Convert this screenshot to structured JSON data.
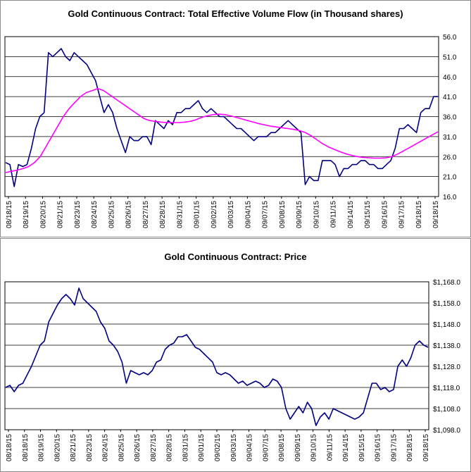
{
  "charts": [
    {
      "id": "volume",
      "title": "Gold Continuous Contract: Total Effective Volume Flow (in Thousand shares)",
      "type": "line",
      "ylim": [
        16.0,
        56.0
      ],
      "yticks": [
        "16.0",
        "21.0",
        "26.0",
        "31.0",
        "36.0",
        "41.0",
        "46.0",
        "51.0",
        "56.0"
      ],
      "ytick_values": [
        16,
        21,
        26,
        31,
        36,
        41,
        46,
        51,
        56
      ],
      "xticks": [
        "08/18/15",
        "08/19/15",
        "08/20/15",
        "08/21/15",
        "08/23/15",
        "08/24/15",
        "08/25/15",
        "08/26/15",
        "08/27/15",
        "08/28/15",
        "08/31/15",
        "09/01/15",
        "09/02/15",
        "09/03/15",
        "09/04/15",
        "09/07/15",
        "09/08/15",
        "09/09/15",
        "09/10/15",
        "09/11/15",
        "09/14/15",
        "09/15/15",
        "09/16/15",
        "09/17/15",
        "09/18/15",
        "09/18/15"
      ],
      "series": [
        {
          "color": "#000080",
          "values": [
            24.5,
            24,
            18.5,
            24,
            23.5,
            24,
            28,
            33,
            36,
            37,
            52,
            51,
            52,
            53,
            51,
            50,
            52,
            51,
            50,
            49,
            47,
            45,
            41,
            37,
            39,
            37,
            33,
            30,
            27,
            31,
            30,
            30,
            31,
            31,
            29,
            35,
            34,
            33,
            35,
            34,
            37,
            37,
            38,
            38,
            39,
            40,
            38,
            37,
            38,
            37,
            36,
            36,
            35,
            34,
            33,
            33,
            32,
            31,
            30,
            31,
            31,
            31,
            32,
            32,
            33,
            34,
            35,
            34,
            33,
            32,
            19,
            21,
            20,
            20,
            25,
            25,
            25,
            24,
            21,
            23,
            23,
            24,
            24,
            25,
            25,
            24,
            24,
            23,
            23,
            24,
            25,
            28,
            33,
            33,
            34,
            33,
            32,
            37,
            38,
            38,
            41,
            41
          ]
        },
        {
          "color": "#ff00ff",
          "values": [
            22,
            22.3,
            22.6,
            23,
            23.5,
            24.5,
            26,
            28.5,
            31,
            33.5,
            36,
            38,
            39.5,
            41,
            42,
            42.5,
            43,
            42.5,
            41.5,
            40.5,
            39.5,
            38.5,
            37.5,
            36.5,
            35.5,
            35,
            34.8,
            34.6,
            34.5,
            34.5,
            34.5,
            34.6,
            34.8,
            35.2,
            35.8,
            36.2,
            36.5,
            36.6,
            36.5,
            36.2,
            35.8,
            35.4,
            35,
            34.6,
            34.2,
            33.9,
            33.6,
            33.4,
            33.2,
            33,
            32.8,
            32.5,
            32,
            31.2,
            30.2,
            29.2,
            28.4,
            27.8,
            27.2,
            26.7,
            26.3,
            26,
            25.8,
            25.7,
            25.6,
            25.6,
            25.7,
            26,
            26.6,
            27.4,
            28.2,
            29,
            29.8,
            30.6,
            31.4,
            32.2
          ]
        }
      ]
    },
    {
      "id": "price",
      "title": "Gold Continuous Contract: Price",
      "type": "line",
      "ylim": [
        1098.0,
        1168.0
      ],
      "yticks": [
        "$1,098.0",
        "$1,108.0",
        "$1,118.0",
        "$1,128.0",
        "$1,138.0",
        "$1,148.0",
        "$1,158.0",
        "$1,168.0"
      ],
      "ytick_values": [
        1098,
        1108,
        1118,
        1128,
        1138,
        1148,
        1158,
        1168
      ],
      "xticks": [
        "08/18/15",
        "08/18/15",
        "08/19/15",
        "08/20/15",
        "08/21/15",
        "08/23/15",
        "08/24/15",
        "08/25/15",
        "08/26/15",
        "08/27/15",
        "08/28/15",
        "08/31/15",
        "09/01/15",
        "09/02/15",
        "09/03/15",
        "09/04/15",
        "09/07/15",
        "09/08/15",
        "09/09/15",
        "09/10/15",
        "09/11/15",
        "09/14/15",
        "09/15/15",
        "09/16/15",
        "09/17/15",
        "09/18/15",
        "09/18/15"
      ],
      "series": [
        {
          "color": "#000080",
          "values": [
            1118,
            1119,
            1116,
            1119,
            1120,
            1124,
            1128,
            1133,
            1138,
            1140,
            1149,
            1153,
            1157,
            1160,
            1162,
            1160,
            1157,
            1165,
            1160,
            1158,
            1156,
            1154,
            1149,
            1146,
            1140,
            1138,
            1135,
            1130,
            1120,
            1126,
            1125,
            1124,
            1125,
            1124,
            1126,
            1130,
            1131,
            1136,
            1138,
            1139,
            1142,
            1142,
            1143,
            1140,
            1137,
            1136,
            1134,
            1132,
            1130,
            1125,
            1124,
            1125,
            1124,
            1122,
            1120,
            1121,
            1119,
            1120,
            1121,
            1120,
            1118,
            1119,
            1122,
            1121,
            1118,
            1108,
            1103,
            1106,
            1109,
            1106,
            1111,
            1108,
            1100,
            1104,
            1106,
            1103,
            1108,
            1107,
            1106,
            1105,
            1104,
            1103,
            1104,
            1106,
            1113,
            1120,
            1120,
            1117,
            1118,
            1116,
            1117,
            1128,
            1131,
            1128,
            1132,
            1138,
            1140,
            1138,
            1137
          ]
        }
      ]
    }
  ]
}
